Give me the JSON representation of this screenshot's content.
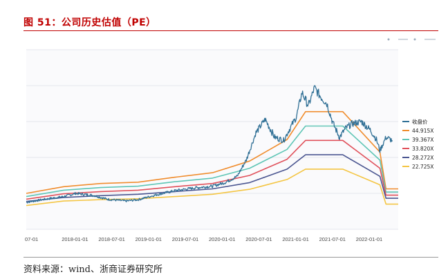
{
  "figure": {
    "title": "图 51：公司历史估值（PE）",
    "source": "资料来源：wind、浙商证券研究所"
  },
  "colors": {
    "title": "#c00000",
    "price": "#2f6f95",
    "pe_44": "#f08c2c",
    "pe_39": "#5ec5b5",
    "pe_33": "#e0505a",
    "pe_28": "#4a5590",
    "pe_22": "#f4c542"
  },
  "chart_data": {
    "type": "line",
    "title": "",
    "xlabel": "",
    "ylabel": "",
    "x_ticks": [
      "07-01",
      "2018-01-01",
      "2018-07-01",
      "2019-01-01",
      "2019-07-01",
      "2020-01-01",
      "2020-07-01",
      "2021-01-01",
      "2021-07-01",
      "2022-01-01"
    ],
    "x_start": "2017-07-01",
    "x_end": "2022-06-30",
    "legend_position": "right",
    "grid": true,
    "series": [
      {
        "name": "收盘价",
        "color": "#2f6f95",
        "values": [
          [
            "2017-07-01",
            2.0
          ],
          [
            "2017-10-01",
            2.7
          ],
          [
            "2018-01-01",
            3.3
          ],
          [
            "2018-03-01",
            4.0
          ],
          [
            "2018-06-01",
            3.5
          ],
          [
            "2018-08-01",
            2.7
          ],
          [
            "2018-11-01",
            2.3
          ],
          [
            "2019-01-01",
            2.6
          ],
          [
            "2019-04-01",
            3.7
          ],
          [
            "2019-07-01",
            4.6
          ],
          [
            "2019-10-01",
            5.2
          ],
          [
            "2020-01-01",
            5.6
          ],
          [
            "2020-03-01",
            6.4
          ],
          [
            "2020-05-01",
            7.8
          ],
          [
            "2020-06-15",
            11.5
          ],
          [
            "2020-08-01",
            17.5
          ],
          [
            "2020-09-15",
            20.5
          ],
          [
            "2020-11-01",
            16.5
          ],
          [
            "2020-12-15",
            15.8
          ],
          [
            "2021-01-15",
            18.5
          ],
          [
            "2021-02-15",
            21.0
          ],
          [
            "2021-03-15",
            26.5
          ],
          [
            "2021-04-15",
            23.5
          ],
          [
            "2021-05-15",
            27.5
          ],
          [
            "2021-06-15",
            25.5
          ],
          [
            "2021-07-15",
            24.0
          ],
          [
            "2021-08-15",
            19.5
          ],
          [
            "2021-09-15",
            16.5
          ],
          [
            "2021-10-15",
            18.5
          ],
          [
            "2021-11-15",
            19.5
          ],
          [
            "2022-01-01",
            20.0
          ],
          [
            "2022-02-15",
            18.0
          ],
          [
            "2022-03-15",
            16.0
          ],
          [
            "2022-04-01",
            13.5
          ],
          [
            "2022-05-01",
            16.5
          ],
          [
            "2022-06-01",
            15.8
          ]
        ]
      },
      {
        "name": "44.915X",
        "color": "#f08c2c",
        "values": [
          [
            "2017-07-01",
            4.0
          ],
          [
            "2018-01-01",
            5.5
          ],
          [
            "2018-07-01",
            6.2
          ],
          [
            "2019-01-01",
            6.5
          ],
          [
            "2019-07-01",
            7.6
          ],
          [
            "2020-01-01",
            8.6
          ],
          [
            "2020-07-01",
            11.2
          ],
          [
            "2021-01-01",
            16.0
          ],
          [
            "2021-04-01",
            22.2
          ],
          [
            "2021-10-01",
            22.2
          ],
          [
            "2022-04-01",
            13.2
          ],
          [
            "2022-05-01",
            5.0
          ],
          [
            "2022-06-30",
            5.0
          ]
        ]
      },
      {
        "name": "39.367X",
        "color": "#5ec5b5",
        "values": [
          [
            "2017-07-01",
            3.3
          ],
          [
            "2018-01-01",
            4.7
          ],
          [
            "2018-07-01",
            5.3
          ],
          [
            "2019-01-01",
            5.6
          ],
          [
            "2019-07-01",
            6.6
          ],
          [
            "2020-01-01",
            7.4
          ],
          [
            "2020-07-01",
            9.6
          ],
          [
            "2021-01-01",
            13.8
          ],
          [
            "2021-04-01",
            19.0
          ],
          [
            "2021-10-01",
            19.0
          ],
          [
            "2022-04-01",
            11.4
          ],
          [
            "2022-05-01",
            4.3
          ],
          [
            "2022-06-30",
            4.3
          ]
        ]
      },
      {
        "name": "33.820X",
        "color": "#e0505a",
        "values": [
          [
            "2017-07-01",
            2.7
          ],
          [
            "2018-01-01",
            3.9
          ],
          [
            "2018-07-01",
            4.4
          ],
          [
            "2019-01-01",
            4.7
          ],
          [
            "2019-07-01",
            5.5
          ],
          [
            "2020-01-01",
            6.2
          ],
          [
            "2020-07-01",
            8.0
          ],
          [
            "2021-01-01",
            11.6
          ],
          [
            "2021-04-01",
            15.8
          ],
          [
            "2021-10-01",
            15.8
          ],
          [
            "2022-04-01",
            9.6
          ],
          [
            "2022-05-01",
            3.6
          ],
          [
            "2022-06-30",
            3.6
          ]
        ]
      },
      {
        "name": "28.272X",
        "color": "#4a5590",
        "values": [
          [
            "2017-07-01",
            2.2
          ],
          [
            "2018-01-01",
            3.1
          ],
          [
            "2018-07-01",
            3.5
          ],
          [
            "2019-01-01",
            3.8
          ],
          [
            "2019-07-01",
            4.4
          ],
          [
            "2020-01-01",
            5.0
          ],
          [
            "2020-07-01",
            6.4
          ],
          [
            "2021-01-01",
            9.4
          ],
          [
            "2021-04-01",
            12.6
          ],
          [
            "2021-10-01",
            12.6
          ],
          [
            "2022-04-01",
            7.8
          ],
          [
            "2022-05-01",
            2.9
          ],
          [
            "2022-06-30",
            2.9
          ]
        ]
      },
      {
        "name": "22.725X",
        "color": "#f4c542",
        "values": [
          [
            "2017-07-01",
            1.3
          ],
          [
            "2018-01-01",
            2.3
          ],
          [
            "2018-07-01",
            2.6
          ],
          [
            "2019-01-01",
            2.8
          ],
          [
            "2019-07-01",
            3.3
          ],
          [
            "2020-01-01",
            3.8
          ],
          [
            "2020-07-01",
            4.9
          ],
          [
            "2021-01-01",
            7.1
          ],
          [
            "2021-04-01",
            9.4
          ],
          [
            "2021-10-01",
            9.4
          ],
          [
            "2022-04-01",
            5.9
          ],
          [
            "2022-05-01",
            1.6
          ],
          [
            "2022-06-30",
            1.6
          ]
        ]
      }
    ],
    "ylim": [
      -4,
      36
    ]
  }
}
